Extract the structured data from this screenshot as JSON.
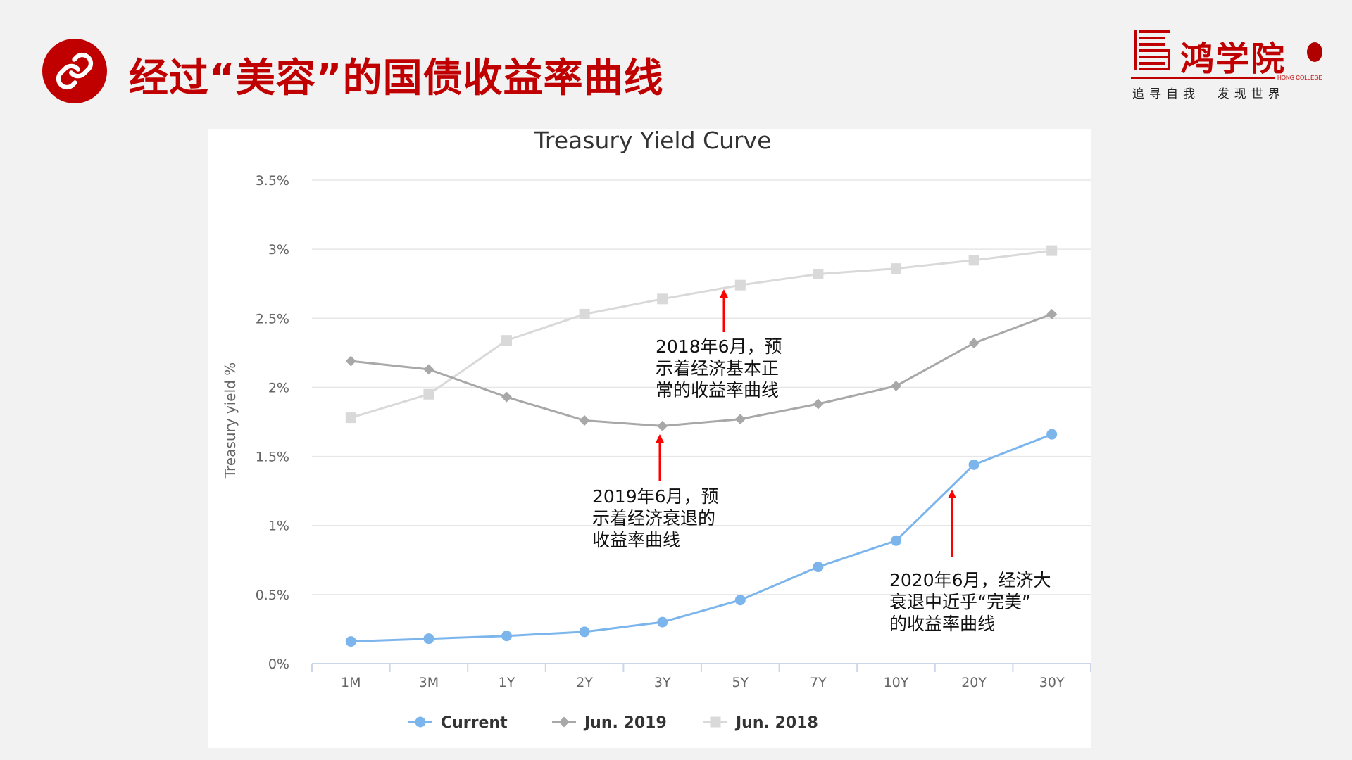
{
  "slide": {
    "title": "经过“美容”的国债收益率曲线",
    "icon": "link-icon"
  },
  "logo": {
    "name": "鸿学院",
    "english": "HONG COLLEGE",
    "slogan": "追寻自我  发现世界"
  },
  "colors": {
    "accent": "#c00000",
    "current": "#7cb5ec",
    "jun2019": "#a8a8a8",
    "jun2018": "#d9d9d9",
    "arrow": "#ff0000"
  },
  "chart_data": {
    "type": "line",
    "title": "Treasury Yield Curve",
    "xlabel": "",
    "ylabel": "Treasury yield %",
    "categories": [
      "1M",
      "3M",
      "1Y",
      "2Y",
      "3Y",
      "5Y",
      "7Y",
      "10Y",
      "20Y",
      "30Y"
    ],
    "y_ticks": [
      "0%",
      "0.5%",
      "1%",
      "1.5%",
      "2%",
      "2.5%",
      "3%",
      "3.5%"
    ],
    "ylim": [
      0,
      3.5
    ],
    "grid": true,
    "legend_position": "bottom",
    "series": [
      {
        "name": "Current",
        "marker": "circle",
        "values": [
          0.16,
          0.18,
          0.2,
          0.23,
          0.3,
          0.46,
          0.7,
          0.89,
          1.44,
          1.66
        ]
      },
      {
        "name": "Jun. 2019",
        "marker": "diamond",
        "values": [
          2.19,
          2.13,
          1.93,
          1.76,
          1.72,
          1.77,
          1.88,
          2.01,
          2.32,
          2.53
        ]
      },
      {
        "name": "Jun. 2018",
        "marker": "square",
        "values": [
          1.78,
          1.95,
          2.34,
          2.53,
          2.64,
          2.74,
          2.82,
          2.86,
          2.92,
          2.99
        ]
      }
    ]
  },
  "annotations": [
    {
      "lines": [
        "2018年6月，预",
        "示着经济基本正",
        "常的收益率曲线"
      ]
    },
    {
      "lines": [
        "2019年6月，预",
        "示着经济衰退的",
        "收益率曲线"
      ]
    },
    {
      "lines": [
        "2020年6月，经济大",
        "衰退中近乎“完美”",
        "的收益率曲线"
      ]
    }
  ]
}
